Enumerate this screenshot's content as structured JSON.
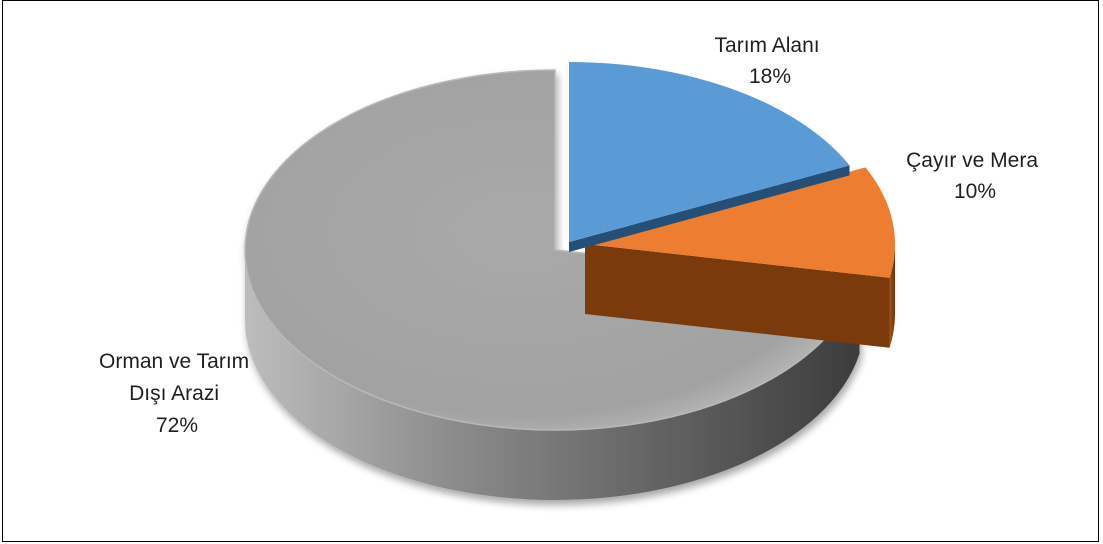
{
  "chart_data": {
    "type": "pie",
    "title": "",
    "style": "3d-exploded",
    "slices": [
      {
        "name": "Tarım Alanı",
        "value": 18,
        "percent_label": "18%",
        "color": "#5B9BD5"
      },
      {
        "name": "Çayır ve Mera",
        "value": 10,
        "percent_label": "10%",
        "color": "#ED7D31"
      },
      {
        "name": "Orman ve Tarım Dışı Arazi",
        "value": 72,
        "percent_label": "72%",
        "color": "#A5A5A5"
      }
    ],
    "labels": [
      {
        "lines": [
          "Tarım Alanı",
          "18%"
        ]
      },
      {
        "lines": [
          "Çayır ve Mera",
          "10%"
        ]
      },
      {
        "lines": [
          "Orman ve Tarım",
          "Dışı Arazi",
          "72%"
        ]
      }
    ],
    "legend": "none"
  }
}
